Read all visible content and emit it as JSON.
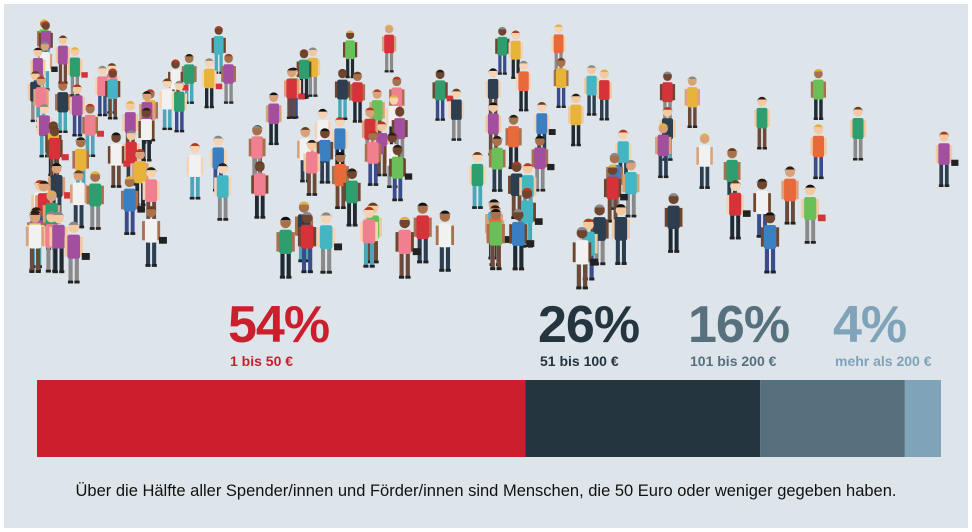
{
  "chart_data": {
    "type": "stacked-bar",
    "series": [
      {
        "name": "1 bis 50 €",
        "color": "#cc1f2e",
        "values": [
          54
        ],
        "value_labels": [
          "54%"
        ]
      },
      {
        "name": "51 bis 100 €",
        "color": "#243540",
        "values": [
          26
        ],
        "value_labels": [
          "26%"
        ]
      },
      {
        "name": "101 bis 200 €",
        "color": "#56707e",
        "values": [
          16
        ],
        "value_labels": [
          "16%"
        ]
      },
      {
        "name": "mehr als 200 €",
        "color": "#7fa3b8",
        "values": [
          4
        ],
        "value_labels": [
          "4%"
        ]
      }
    ],
    "caption": "Über die Hälfte aller Spender/innen und Förder/innen sind Menschen, die 50 Euro oder weniger gegeben haben."
  }
}
